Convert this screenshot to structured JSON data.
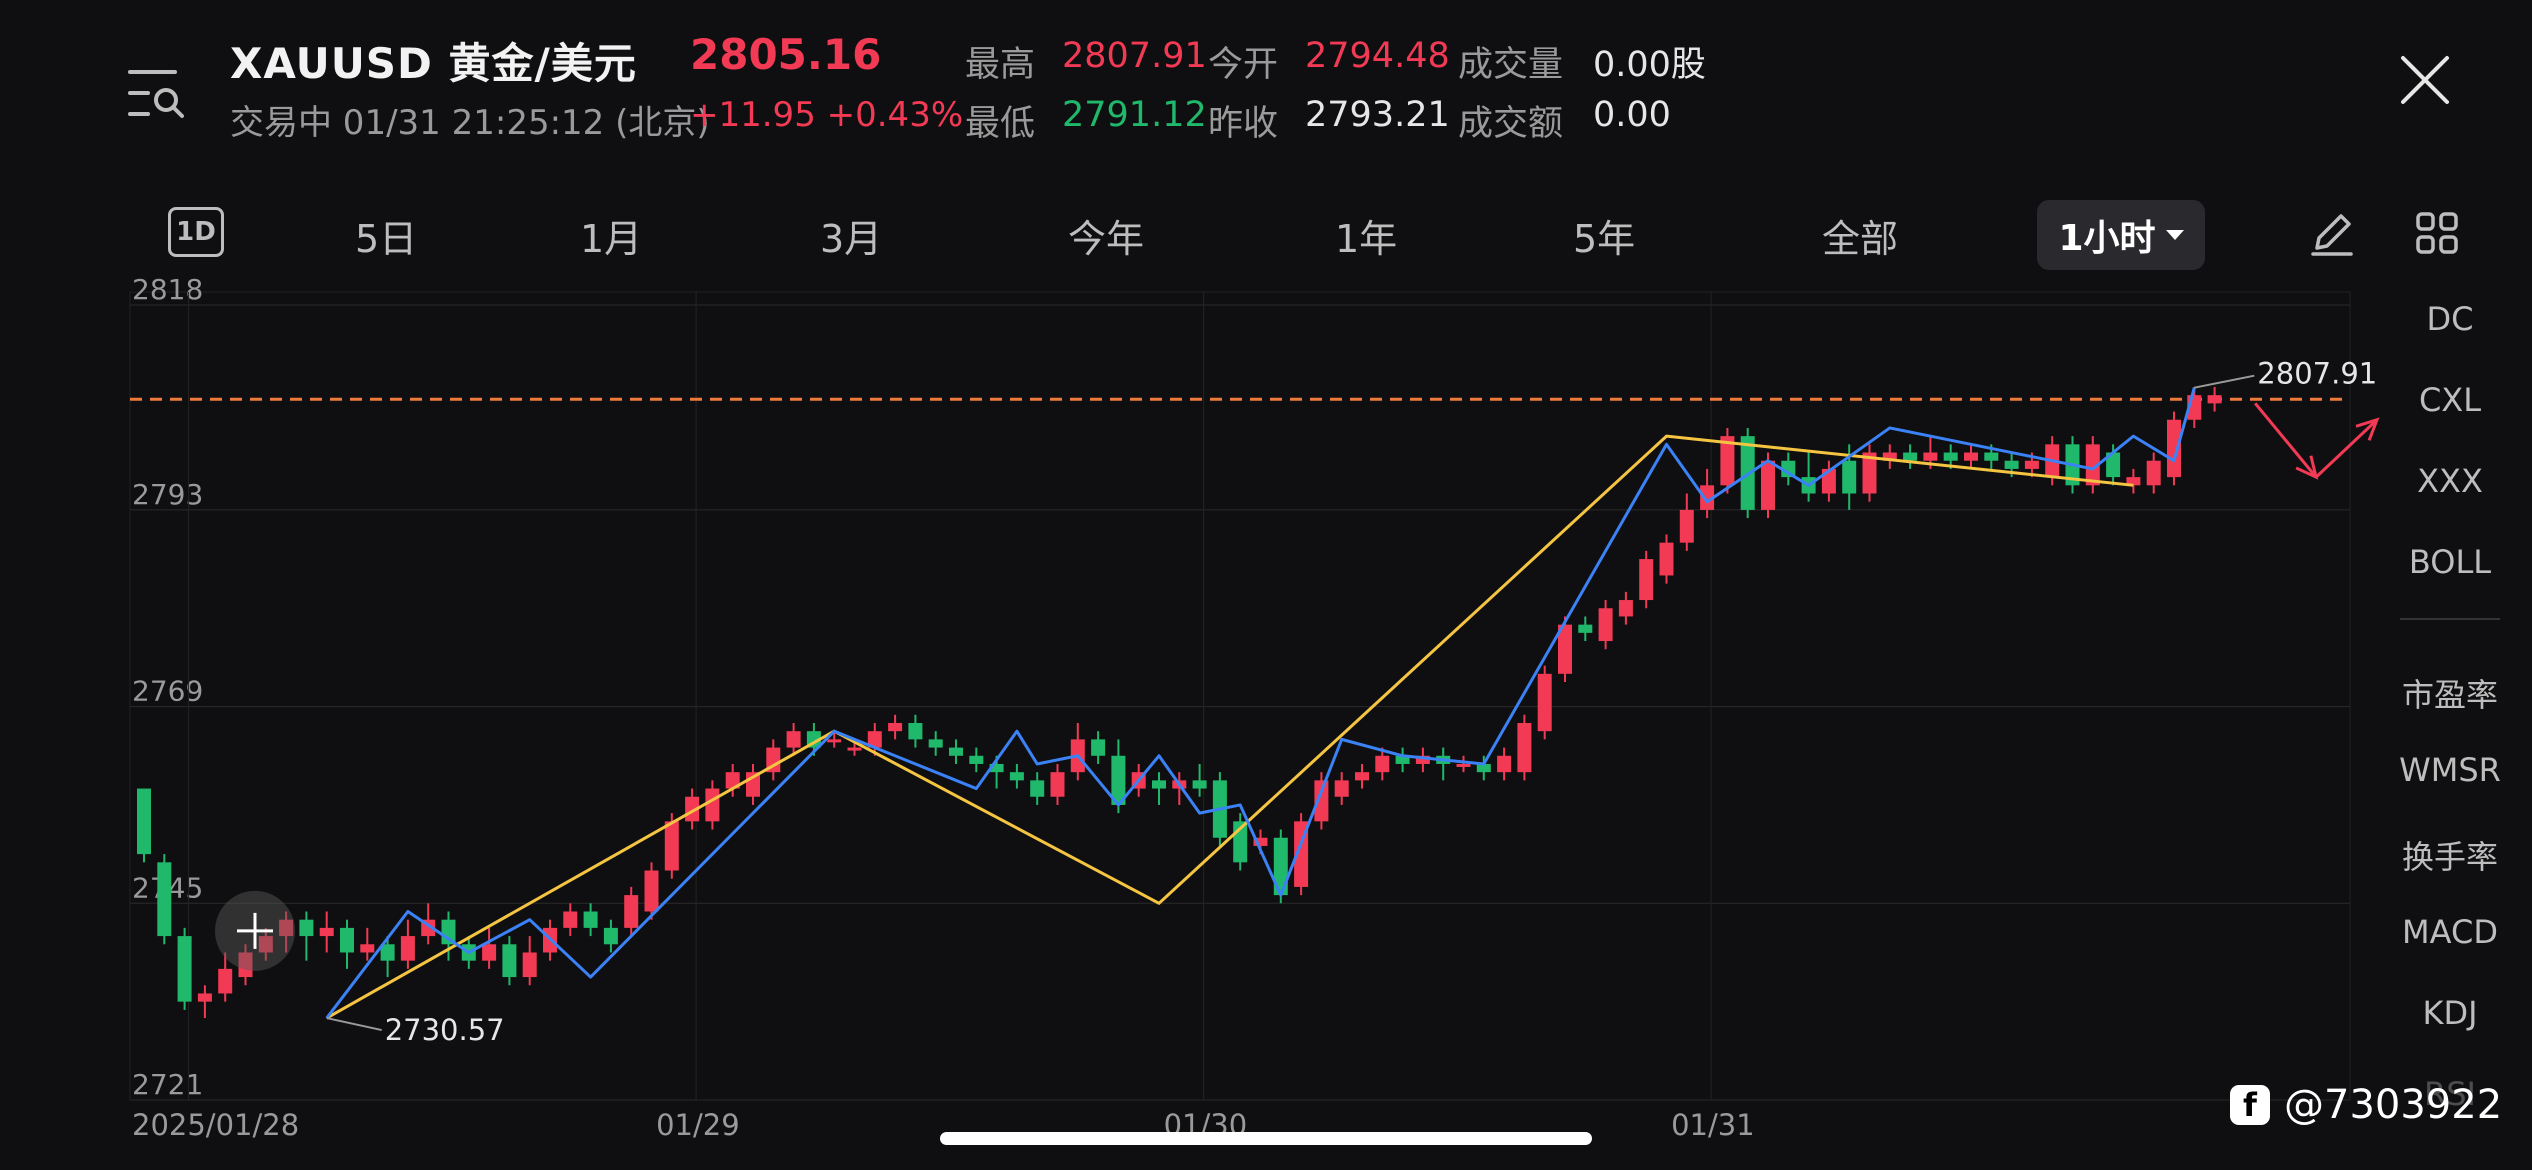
{
  "header": {
    "symbol": "XAUUSD 黄金/美元",
    "price": "2805.16",
    "status": "交易中 01/31 21:25:12 (北京)",
    "change": "+11.95 +0.43%",
    "stats": {
      "high_label": "最高",
      "high": "2807.91",
      "open_label": "今开",
      "open": "2794.48",
      "volume_label": "成交量",
      "volume": "0.00股",
      "low_label": "最低",
      "low": "2791.12",
      "prev_close_label": "昨收",
      "prev_close": "2793.21",
      "amount_label": "成交额",
      "amount": "0.00"
    }
  },
  "tabs": {
    "d1": "1D",
    "d5": "5日",
    "m1": "1月",
    "m3": "3月",
    "ytd": "今年",
    "y1": "1年",
    "y5": "5年",
    "all": "全部",
    "interval": "1小时"
  },
  "indicators": [
    "DC",
    "CXL",
    "XXX",
    "BOLL",
    "市盈率",
    "WMSR",
    "换手率",
    "MACD",
    "KDJ",
    "RSI"
  ],
  "watermark": "@7303922",
  "colors": {
    "up": "#f23a55",
    "down": "#20b86a",
    "zigzag_blue": "#3b82f6",
    "zigzag_yellow": "#f5c542",
    "dashed": "#f07a3a"
  },
  "chart_data": {
    "type": "candlestick",
    "y_ticks": [
      "2818",
      "2793",
      "2769",
      "2745",
      "2721"
    ],
    "ylim": [
      2721,
      2818
    ],
    "x_labels": [
      "2025/01/28",
      "01/29",
      "01/30",
      "01/31"
    ],
    "x_label_positions": [
      2,
      27,
      52,
      77
    ],
    "dashed_line": 2806.5,
    "annotations": {
      "low_label": "2730.57",
      "high_label": "2807.91"
    },
    "candles": [
      [
        2759,
        2751,
        2759,
        2750
      ],
      [
        2750,
        2741,
        2751,
        2740
      ],
      [
        2741,
        2733,
        2742,
        2732
      ],
      [
        2733,
        2734,
        2735,
        2731
      ],
      [
        2734,
        2737,
        2739,
        2733
      ],
      [
        2736,
        2739,
        2740,
        2735
      ],
      [
        2739,
        2741,
        2742,
        2738
      ],
      [
        2741,
        2743,
        2744,
        2739
      ],
      [
        2743,
        2741,
        2744,
        2738
      ],
      [
        2741,
        2742,
        2744,
        2739
      ],
      [
        2742,
        2739,
        2743,
        2737
      ],
      [
        2739,
        2740,
        2742,
        2738
      ],
      [
        2740,
        2738,
        2741,
        2736
      ],
      [
        2738,
        2741,
        2743,
        2737
      ],
      [
        2741,
        2743,
        2745,
        2740
      ],
      [
        2743,
        2740,
        2744,
        2738
      ],
      [
        2740,
        2738,
        2741,
        2737
      ],
      [
        2738,
        2740,
        2742,
        2737
      ],
      [
        2740,
        2736,
        2741,
        2735
      ],
      [
        2736,
        2739,
        2741,
        2735
      ],
      [
        2739,
        2742,
        2743,
        2738
      ],
      [
        2742,
        2744,
        2745,
        2741
      ],
      [
        2744,
        2742,
        2745,
        2741
      ],
      [
        2742,
        2740,
        2743,
        2739
      ],
      [
        2742,
        2746,
        2747,
        2741
      ],
      [
        2744,
        2749,
        2750,
        2743
      ],
      [
        2749,
        2755,
        2756,
        2748
      ],
      [
        2755,
        2758,
        2759,
        2754
      ],
      [
        2755,
        2759,
        2760,
        2754
      ],
      [
        2759,
        2761,
        2762,
        2758
      ],
      [
        2758,
        2761,
        2762,
        2757
      ],
      [
        2761,
        2764,
        2765,
        2760
      ],
      [
        2764,
        2766,
        2767,
        2763
      ],
      [
        2766,
        2764,
        2767,
        2763
      ],
      [
        2765,
        2765,
        2766,
        2764
      ],
      [
        2764,
        2764,
        2765,
        2763
      ],
      [
        2764,
        2766,
        2767,
        2763
      ],
      [
        2766,
        2767,
        2768,
        2765
      ],
      [
        2767,
        2765,
        2768,
        2764
      ],
      [
        2765,
        2764,
        2766,
        2763
      ],
      [
        2764,
        2763,
        2765,
        2762
      ],
      [
        2763,
        2762,
        2764,
        2761
      ],
      [
        2762,
        2761,
        2763,
        2759
      ],
      [
        2761,
        2760,
        2762,
        2759
      ],
      [
        2760,
        2758,
        2761,
        2757
      ],
      [
        2758,
        2761,
        2762,
        2757
      ],
      [
        2761,
        2765,
        2767,
        2760
      ],
      [
        2765,
        2763,
        2766,
        2762
      ],
      [
        2763,
        2757,
        2765,
        2756
      ],
      [
        2759,
        2761,
        2762,
        2758
      ],
      [
        2760,
        2759,
        2761,
        2757
      ],
      [
        2759,
        2760,
        2761,
        2757
      ],
      [
        2760,
        2759,
        2762,
        2758
      ],
      [
        2760,
        2753,
        2761,
        2752
      ],
      [
        2755,
        2750,
        2756,
        2749
      ],
      [
        2752,
        2753,
        2754,
        2751
      ],
      [
        2753,
        2746,
        2754,
        2745
      ],
      [
        2747,
        2755,
        2756,
        2746
      ],
      [
        2755,
        2760,
        2761,
        2754
      ],
      [
        2758,
        2760,
        2761,
        2757
      ],
      [
        2760,
        2761,
        2762,
        2759
      ],
      [
        2761,
        2763,
        2764,
        2760
      ],
      [
        2763,
        2762,
        2764,
        2761
      ],
      [
        2762,
        2763,
        2764,
        2761
      ],
      [
        2763,
        2762,
        2764,
        2760
      ],
      [
        2762,
        2762,
        2763,
        2761
      ],
      [
        2762,
        2761,
        2763,
        2760
      ],
      [
        2761,
        2763,
        2764,
        2760
      ],
      [
        2761,
        2767,
        2768,
        2760
      ],
      [
        2766,
        2773,
        2774,
        2765
      ],
      [
        2773,
        2779,
        2780,
        2772
      ],
      [
        2779,
        2778,
        2780,
        2777
      ],
      [
        2777,
        2781,
        2782,
        2776
      ],
      [
        2780,
        2782,
        2783,
        2779
      ],
      [
        2782,
        2787,
        2788,
        2781
      ],
      [
        2785,
        2789,
        2790,
        2784
      ],
      [
        2789,
        2793,
        2795,
        2788
      ],
      [
        2793,
        2796,
        2798,
        2792
      ],
      [
        2796,
        2802,
        2803,
        2795
      ],
      [
        2802,
        2793,
        2803,
        2792
      ],
      [
        2793,
        2799,
        2800,
        2792
      ],
      [
        2799,
        2797,
        2800,
        2796
      ],
      [
        2797,
        2795,
        2800,
        2794
      ],
      [
        2795,
        2798,
        2799,
        2794
      ],
      [
        2799,
        2795,
        2801,
        2793
      ],
      [
        2795,
        2800,
        2801,
        2794
      ],
      [
        2799,
        2800,
        2801,
        2798
      ],
      [
        2800,
        2799,
        2801,
        2798
      ],
      [
        2799,
        2800,
        2802,
        2798
      ],
      [
        2800,
        2799,
        2801,
        2798
      ],
      [
        2799,
        2800,
        2801,
        2798
      ],
      [
        2800,
        2799,
        2801,
        2798
      ],
      [
        2799,
        2798,
        2800,
        2797
      ],
      [
        2798,
        2799,
        2800,
        2797
      ],
      [
        2797,
        2801,
        2802,
        2796
      ],
      [
        2801,
        2796,
        2802,
        2795
      ],
      [
        2796,
        2801,
        2802,
        2795
      ],
      [
        2800,
        2797,
        2801,
        2796
      ],
      [
        2796,
        2797,
        2798,
        2795
      ],
      [
        2796,
        2799,
        2800,
        2795
      ],
      [
        2797,
        2804,
        2805,
        2796
      ],
      [
        2804,
        2807,
        2808,
        2803
      ],
      [
        2806,
        2807,
        2808,
        2805
      ]
    ],
    "blue_zigzag": [
      [
        9,
        2731
      ],
      [
        13,
        2744
      ],
      [
        16,
        2739
      ],
      [
        19,
        2743
      ],
      [
        22,
        2736
      ],
      [
        34,
        2766
      ],
      [
        41,
        2759
      ],
      [
        43,
        2766
      ],
      [
        44,
        2762
      ],
      [
        46,
        2763
      ],
      [
        48,
        2757
      ],
      [
        50,
        2763
      ],
      [
        52,
        2756
      ],
      [
        54,
        2757
      ],
      [
        56,
        2746
      ],
      [
        59,
        2765
      ],
      [
        62,
        2763
      ],
      [
        66,
        2762
      ],
      [
        75,
        2801
      ],
      [
        77,
        2794
      ],
      [
        80,
        2799
      ],
      [
        82,
        2796
      ],
      [
        86,
        2803
      ],
      [
        96,
        2798
      ],
      [
        98,
        2802
      ],
      [
        100,
        2799
      ],
      [
        101,
        2807.91
      ]
    ],
    "yellow_zigzag": [
      [
        9,
        2731
      ],
      [
        34,
        2766
      ],
      [
        50,
        2745
      ],
      [
        75,
        2802
      ],
      [
        98,
        2796
      ]
    ],
    "arrows": [
      [
        [
          104,
          2806
        ],
        [
          107,
          2797
        ]
      ],
      [
        [
          107,
          2797
        ],
        [
          110,
          2804
        ]
      ]
    ]
  }
}
